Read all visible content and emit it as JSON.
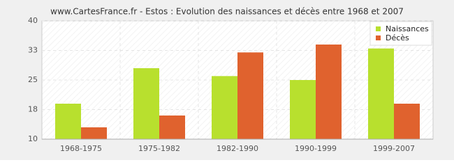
{
  "chart_data": {
    "type": "bar",
    "title": "www.CartesFrance.fr - Estos : Evolution des naissances et décès entre 1968 et 2007",
    "categories": [
      "1968-1975",
      "1975-1982",
      "1982-1990",
      "1990-1999",
      "1999-2007"
    ],
    "series": [
      {
        "name": "Naissances",
        "color": "#b8e02e",
        "values": [
          19,
          28,
          26,
          25,
          33
        ]
      },
      {
        "name": "Décès",
        "color": "#e0622e",
        "values": [
          13,
          16,
          32,
          34,
          19
        ]
      }
    ],
    "ylim": [
      10,
      40
    ],
    "yticks": [
      10,
      {
        "value": 17.5,
        "label": "18"
      },
      25,
      {
        "value": 32.5,
        "label": "33"
      },
      40
    ],
    "grid": true,
    "legend": "top-right"
  }
}
